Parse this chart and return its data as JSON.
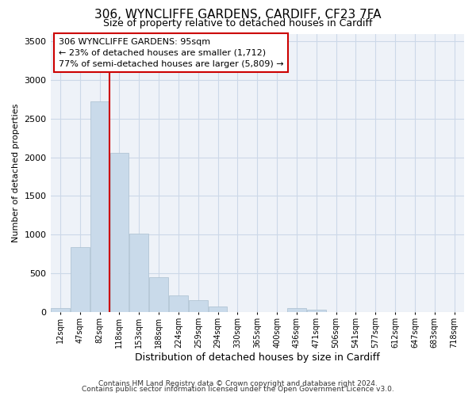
{
  "title1": "306, WYNCLIFFE GARDENS, CARDIFF, CF23 7FA",
  "title2": "Size of property relative to detached houses in Cardiff",
  "xlabel": "Distribution of detached houses by size in Cardiff",
  "ylabel": "Number of detached properties",
  "bar_color": "#c9daea",
  "bar_edgecolor": "#aabfcf",
  "grid_color": "#ccd8e8",
  "background_color": "#eef2f8",
  "categories": [
    "12sqm",
    "47sqm",
    "82sqm",
    "118sqm",
    "153sqm",
    "188sqm",
    "224sqm",
    "259sqm",
    "294sqm",
    "330sqm",
    "365sqm",
    "400sqm",
    "436sqm",
    "471sqm",
    "506sqm",
    "541sqm",
    "577sqm",
    "612sqm",
    "647sqm",
    "683sqm",
    "718sqm"
  ],
  "values": [
    55,
    840,
    2720,
    2060,
    1010,
    450,
    210,
    150,
    75,
    0,
    0,
    0,
    50,
    28,
    0,
    0,
    0,
    0,
    0,
    0,
    0
  ],
  "ylim": [
    0,
    3600
  ],
  "yticks": [
    0,
    500,
    1000,
    1500,
    2000,
    2500,
    3000,
    3500
  ],
  "property_line_x": 2.5,
  "property_line_color": "#cc0000",
  "annotation_line1": "306 WYNCLIFFE GARDENS: 95sqm",
  "annotation_line2": "← 23% of detached houses are smaller (1,712)",
  "annotation_line3": "77% of semi-detached houses are larger (5,809) →",
  "annotation_box_color": "#ffffff",
  "annotation_box_edgecolor": "#cc0000",
  "footer1": "Contains HM Land Registry data © Crown copyright and database right 2024.",
  "footer2": "Contains public sector information licensed under the Open Government Licence v3.0."
}
